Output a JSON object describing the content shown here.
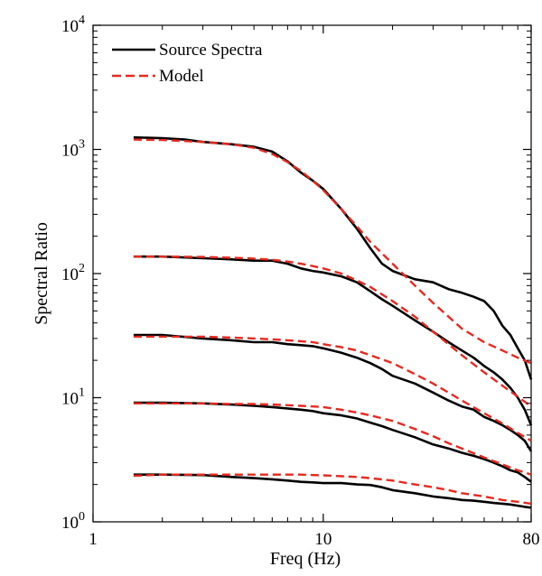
{
  "chart_data": {
    "type": "line",
    "title": "",
    "xlabel": "Freq (Hz)",
    "ylabel": "Spectral Ratio",
    "xscale": "log",
    "yscale": "log",
    "xlim": [
      1,
      80
    ],
    "ylim": [
      1,
      10000
    ],
    "x_ticks": [
      {
        "value": 1,
        "label": "1"
      },
      {
        "value": 10,
        "label": "10"
      },
      {
        "value": 80,
        "label": "80"
      }
    ],
    "y_ticks": [
      {
        "value": 1,
        "base": "10",
        "exp": "0"
      },
      {
        "value": 10,
        "base": "10",
        "exp": "1"
      },
      {
        "value": 100,
        "base": "10",
        "exp": "2"
      },
      {
        "value": 1000,
        "base": "10",
        "exp": "3"
      },
      {
        "value": 10000,
        "base": "10",
        "exp": "4"
      }
    ],
    "grid": false,
    "legend": {
      "position": "top-left",
      "entries": [
        {
          "label": "Source Spectra",
          "color": "#000000",
          "style": "solid"
        },
        {
          "label": "Model",
          "color": "#e8281e",
          "style": "dashed"
        }
      ]
    },
    "series": [
      {
        "style": "solid",
        "color": "#000000",
        "points": [
          [
            1.5,
            1250
          ],
          [
            2,
            1230
          ],
          [
            2.5,
            1200
          ],
          [
            3,
            1150
          ],
          [
            4,
            1100
          ],
          [
            5,
            1050
          ],
          [
            6,
            960
          ],
          [
            7,
            800
          ],
          [
            8,
            650
          ],
          [
            9,
            560
          ],
          [
            10,
            480
          ],
          [
            12,
            330
          ],
          [
            14,
            230
          ],
          [
            16,
            160
          ],
          [
            18,
            120
          ],
          [
            20,
            105
          ],
          [
            25,
            90
          ],
          [
            30,
            85
          ],
          [
            35,
            75
          ],
          [
            40,
            70
          ],
          [
            45,
            65
          ],
          [
            50,
            60
          ],
          [
            55,
            50
          ],
          [
            60,
            38
          ],
          [
            65,
            32
          ],
          [
            70,
            25
          ],
          [
            75,
            20
          ],
          [
            80,
            14
          ]
        ]
      },
      {
        "style": "dashed",
        "color": "#e8281e",
        "points": [
          [
            1.5,
            1200
          ],
          [
            2,
            1190
          ],
          [
            3,
            1150
          ],
          [
            4,
            1100
          ],
          [
            5,
            1030
          ],
          [
            6,
            920
          ],
          [
            7,
            790
          ],
          [
            8,
            670
          ],
          [
            9,
            560
          ],
          [
            10,
            470
          ],
          [
            12,
            330
          ],
          [
            14,
            240
          ],
          [
            16,
            180
          ],
          [
            20,
            120
          ],
          [
            25,
            80
          ],
          [
            30,
            58
          ],
          [
            35,
            45
          ],
          [
            40,
            36
          ],
          [
            50,
            28
          ],
          [
            60,
            24
          ],
          [
            70,
            21
          ],
          [
            80,
            19
          ]
        ]
      },
      {
        "style": "solid",
        "color": "#000000",
        "points": [
          [
            1.5,
            137
          ],
          [
            2,
            137
          ],
          [
            3,
            133
          ],
          [
            4,
            130
          ],
          [
            5,
            127
          ],
          [
            6,
            127
          ],
          [
            7,
            120
          ],
          [
            8,
            110
          ],
          [
            9,
            105
          ],
          [
            10,
            102
          ],
          [
            12,
            95
          ],
          [
            14,
            85
          ],
          [
            16,
            72
          ],
          [
            18,
            62
          ],
          [
            20,
            55
          ],
          [
            25,
            42
          ],
          [
            30,
            34
          ],
          [
            35,
            28
          ],
          [
            40,
            24
          ],
          [
            45,
            21
          ],
          [
            50,
            18
          ],
          [
            55,
            16
          ],
          [
            60,
            14
          ],
          [
            65,
            12
          ],
          [
            70,
            10
          ],
          [
            75,
            8
          ],
          [
            80,
            6
          ]
        ]
      },
      {
        "style": "dashed",
        "color": "#e8281e",
        "points": [
          [
            1.5,
            137
          ],
          [
            2,
            137
          ],
          [
            3,
            136
          ],
          [
            4,
            134
          ],
          [
            5,
            132
          ],
          [
            6,
            129
          ],
          [
            7,
            125
          ],
          [
            8,
            120
          ],
          [
            9,
            115
          ],
          [
            10,
            110
          ],
          [
            12,
            100
          ],
          [
            14,
            88
          ],
          [
            16,
            78
          ],
          [
            20,
            60
          ],
          [
            25,
            45
          ],
          [
            30,
            34
          ],
          [
            35,
            27
          ],
          [
            40,
            22
          ],
          [
            50,
            16
          ],
          [
            60,
            12.5
          ],
          [
            70,
            10.2
          ],
          [
            80,
            8.5
          ]
        ]
      },
      {
        "style": "solid",
        "color": "#000000",
        "points": [
          [
            1.5,
            32
          ],
          [
            2,
            32
          ],
          [
            3,
            30
          ],
          [
            4,
            29
          ],
          [
            5,
            28
          ],
          [
            6,
            28
          ],
          [
            7,
            27
          ],
          [
            8,
            26.5
          ],
          [
            9,
            26
          ],
          [
            10,
            25
          ],
          [
            12,
            23
          ],
          [
            14,
            21
          ],
          [
            16,
            19
          ],
          [
            18,
            17
          ],
          [
            20,
            15
          ],
          [
            25,
            13
          ],
          [
            30,
            11
          ],
          [
            35,
            9.5
          ],
          [
            40,
            8.5
          ],
          [
            45,
            8
          ],
          [
            50,
            7
          ],
          [
            55,
            6.5
          ],
          [
            60,
            6
          ],
          [
            65,
            5.5
          ],
          [
            70,
            5
          ],
          [
            75,
            4.5
          ],
          [
            80,
            3.7
          ]
        ]
      },
      {
        "style": "dashed",
        "color": "#e8281e",
        "points": [
          [
            1.5,
            31
          ],
          [
            2,
            31
          ],
          [
            3,
            31
          ],
          [
            4,
            30.5
          ],
          [
            5,
            30
          ],
          [
            6,
            29.5
          ],
          [
            7,
            29
          ],
          [
            8,
            28.5
          ],
          [
            9,
            28
          ],
          [
            10,
            27
          ],
          [
            12,
            25.5
          ],
          [
            14,
            24
          ],
          [
            16,
            22
          ],
          [
            20,
            19
          ],
          [
            25,
            15.5
          ],
          [
            30,
            13
          ],
          [
            35,
            11
          ],
          [
            40,
            9.5
          ],
          [
            50,
            7.5
          ],
          [
            60,
            6.2
          ],
          [
            70,
            5.2
          ],
          [
            80,
            4.5
          ]
        ]
      },
      {
        "style": "solid",
        "color": "#000000",
        "points": [
          [
            1.5,
            9.1
          ],
          [
            2,
            9.1
          ],
          [
            3,
            9
          ],
          [
            4,
            8.8
          ],
          [
            5,
            8.6
          ],
          [
            6,
            8.4
          ],
          [
            7,
            8.2
          ],
          [
            8,
            8
          ],
          [
            9,
            7.8
          ],
          [
            10,
            7.5
          ],
          [
            12,
            7.2
          ],
          [
            14,
            6.8
          ],
          [
            16,
            6.3
          ],
          [
            18,
            5.9
          ],
          [
            20,
            5.5
          ],
          [
            25,
            4.8
          ],
          [
            30,
            4.2
          ],
          [
            35,
            3.9
          ],
          [
            40,
            3.6
          ],
          [
            45,
            3.4
          ],
          [
            50,
            3.2
          ],
          [
            55,
            3
          ],
          [
            60,
            2.8
          ],
          [
            65,
            2.6
          ],
          [
            70,
            2.5
          ],
          [
            75,
            2.3
          ],
          [
            80,
            2.1
          ]
        ]
      },
      {
        "style": "dashed",
        "color": "#e8281e",
        "points": [
          [
            1.5,
            9
          ],
          [
            2,
            9
          ],
          [
            3,
            9
          ],
          [
            4,
            8.9
          ],
          [
            5,
            8.9
          ],
          [
            6,
            8.8
          ],
          [
            7,
            8.7
          ],
          [
            8,
            8.6
          ],
          [
            9,
            8.5
          ],
          [
            10,
            8.4
          ],
          [
            12,
            8
          ],
          [
            14,
            7.6
          ],
          [
            16,
            7.2
          ],
          [
            20,
            6.5
          ],
          [
            25,
            5.6
          ],
          [
            30,
            4.9
          ],
          [
            35,
            4.3
          ],
          [
            40,
            3.9
          ],
          [
            50,
            3.3
          ],
          [
            60,
            2.9
          ],
          [
            70,
            2.6
          ],
          [
            80,
            2.4
          ]
        ]
      },
      {
        "style": "solid",
        "color": "#000000",
        "points": [
          [
            1.5,
            2.4
          ],
          [
            2,
            2.4
          ],
          [
            3,
            2.38
          ],
          [
            4,
            2.3
          ],
          [
            5,
            2.25
          ],
          [
            6,
            2.2
          ],
          [
            7,
            2.15
          ],
          [
            8,
            2.1
          ],
          [
            9,
            2.08
          ],
          [
            10,
            2.05
          ],
          [
            12,
            2.05
          ],
          [
            14,
            2
          ],
          [
            16,
            1.98
          ],
          [
            18,
            1.9
          ],
          [
            20,
            1.8
          ],
          [
            25,
            1.7
          ],
          [
            30,
            1.6
          ],
          [
            35,
            1.55
          ],
          [
            40,
            1.5
          ],
          [
            45,
            1.48
          ],
          [
            50,
            1.45
          ],
          [
            55,
            1.42
          ],
          [
            60,
            1.4
          ],
          [
            65,
            1.38
          ],
          [
            70,
            1.35
          ],
          [
            75,
            1.32
          ],
          [
            80,
            1.3
          ]
        ]
      },
      {
        "style": "dashed",
        "color": "#e8281e",
        "points": [
          [
            1.5,
            2.35
          ],
          [
            2,
            2.4
          ],
          [
            3,
            2.4
          ],
          [
            4,
            2.4
          ],
          [
            5,
            2.4
          ],
          [
            6,
            2.4
          ],
          [
            7,
            2.4
          ],
          [
            8,
            2.4
          ],
          [
            9,
            2.38
          ],
          [
            10,
            2.37
          ],
          [
            12,
            2.33
          ],
          [
            14,
            2.3
          ],
          [
            16,
            2.25
          ],
          [
            20,
            2.15
          ],
          [
            25,
            2
          ],
          [
            30,
            1.9
          ],
          [
            35,
            1.8
          ],
          [
            40,
            1.7
          ],
          [
            50,
            1.6
          ],
          [
            60,
            1.5
          ],
          [
            70,
            1.45
          ],
          [
            80,
            1.4
          ]
        ]
      }
    ]
  }
}
